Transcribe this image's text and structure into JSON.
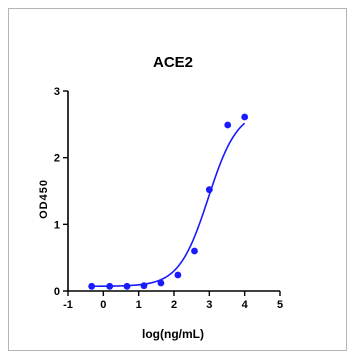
{
  "chart_data": {
    "type": "scatter",
    "title": "ACE2",
    "xlabel": "log(ng/mL)",
    "ylabel": "OD450",
    "xlim": [
      -1,
      5
    ],
    "ylim": [
      0,
      3
    ],
    "xticks": [
      -1,
      0,
      1,
      2,
      3,
      4,
      5
    ],
    "yticks": [
      0,
      1,
      2,
      3
    ],
    "xtick_labels": [
      "-1",
      "0",
      "1",
      "2",
      "3",
      "4",
      "5"
    ],
    "ytick_labels": [
      "0",
      "1",
      "2",
      "3"
    ],
    "grid": false,
    "legend": "none",
    "series": [
      {
        "x": [
          -0.33,
          0.18,
          0.67,
          1.15,
          1.63,
          2.11,
          2.58,
          3.0,
          3.52,
          4.0
        ],
        "y": [
          0.07,
          0.07,
          0.07,
          0.08,
          0.12,
          0.24,
          0.6,
          1.52,
          2.49,
          2.61
        ],
        "fit": {
          "model": "4PL",
          "bottom": 0.07,
          "top": 2.72,
          "logEC50": 2.97,
          "hill": 1.05
        }
      }
    ],
    "colors": {
      "series": "#1a1aff",
      "axis": "#000000"
    }
  }
}
